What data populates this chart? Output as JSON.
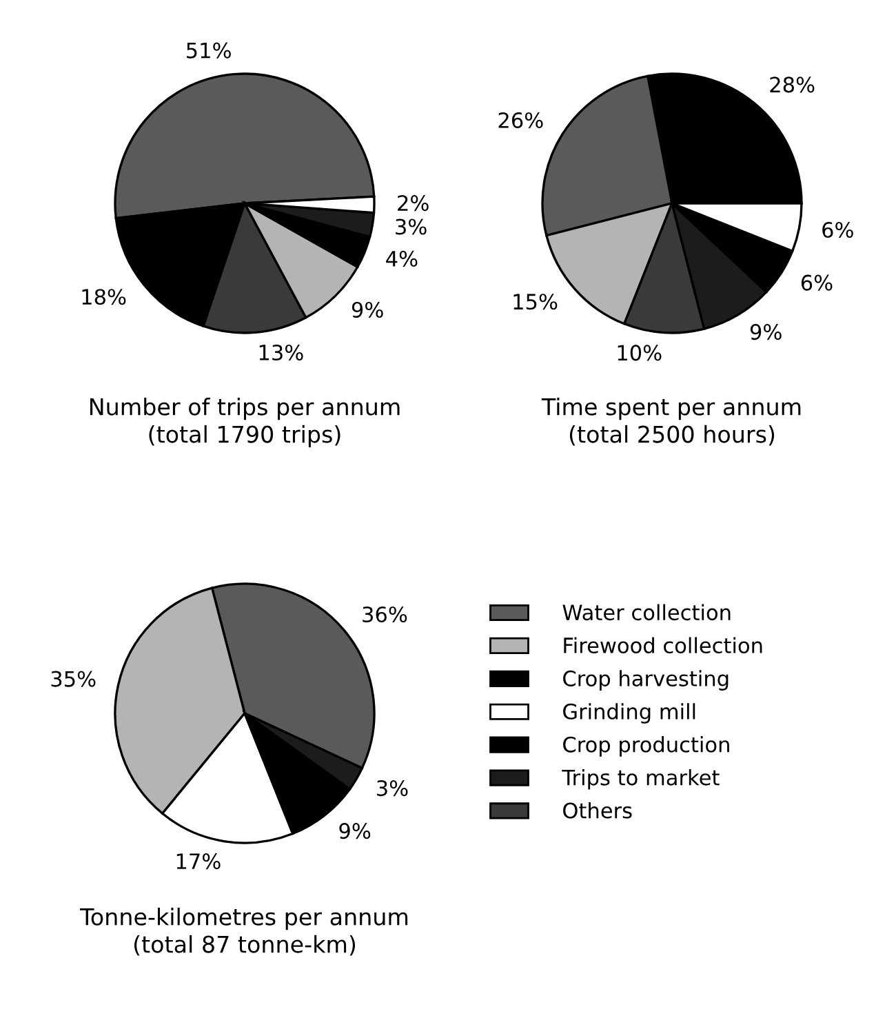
{
  "chart_data": [
    {
      "type": "pie",
      "title": "Number of trips per annum\n(total 1790 trips)",
      "categories": [
        null,
        null,
        null,
        null,
        null,
        null,
        null
      ],
      "values": [
        51,
        18,
        13,
        9,
        4,
        3,
        2
      ],
      "colors": [
        "#5a5a5a",
        "#000000",
        "#3a3a3a",
        "#b4b4b4",
        "#000000",
        "#1c1c1c",
        "#ffffff"
      ],
      "value_labels": [
        "51%",
        "18%",
        "13%",
        "9%",
        "4%",
        "3%",
        "2%"
      ]
    },
    {
      "type": "pie",
      "title": "Time spent per annum\n(total 2500 hours)",
      "categories": [
        null,
        null,
        null,
        null,
        null,
        null,
        null
      ],
      "values": [
        28,
        26,
        15,
        10,
        9,
        6,
        6
      ],
      "colors": [
        "#000000",
        "#5a5a5a",
        "#b4b4b4",
        "#3a3a3a",
        "#1c1c1c",
        "#000000",
        "#ffffff"
      ],
      "value_labels": [
        "28%",
        "26%",
        "15%",
        "10%",
        "9%",
        "6%",
        "6%"
      ]
    },
    {
      "type": "pie",
      "title": "Tonne-kilometres per annum\n(total 87 tonne-km)",
      "categories": [
        "Water collection",
        "Firewood collection",
        "Crop harvesting",
        "Grinding mill",
        "Crop production",
        "Trips to market",
        "Others"
      ],
      "values": [
        36,
        35,
        null,
        17,
        9,
        3,
        null
      ],
      "colors": [
        "#5a5a5a",
        "#b4b4b4",
        "#000000",
        "#ffffff",
        "#000000",
        "#1c1c1c",
        "#3a3a3a"
      ],
      "value_labels": [
        "36%",
        "35%",
        null,
        "17%",
        "9%",
        "3%",
        null
      ],
      "legend": "right"
    }
  ]
}
